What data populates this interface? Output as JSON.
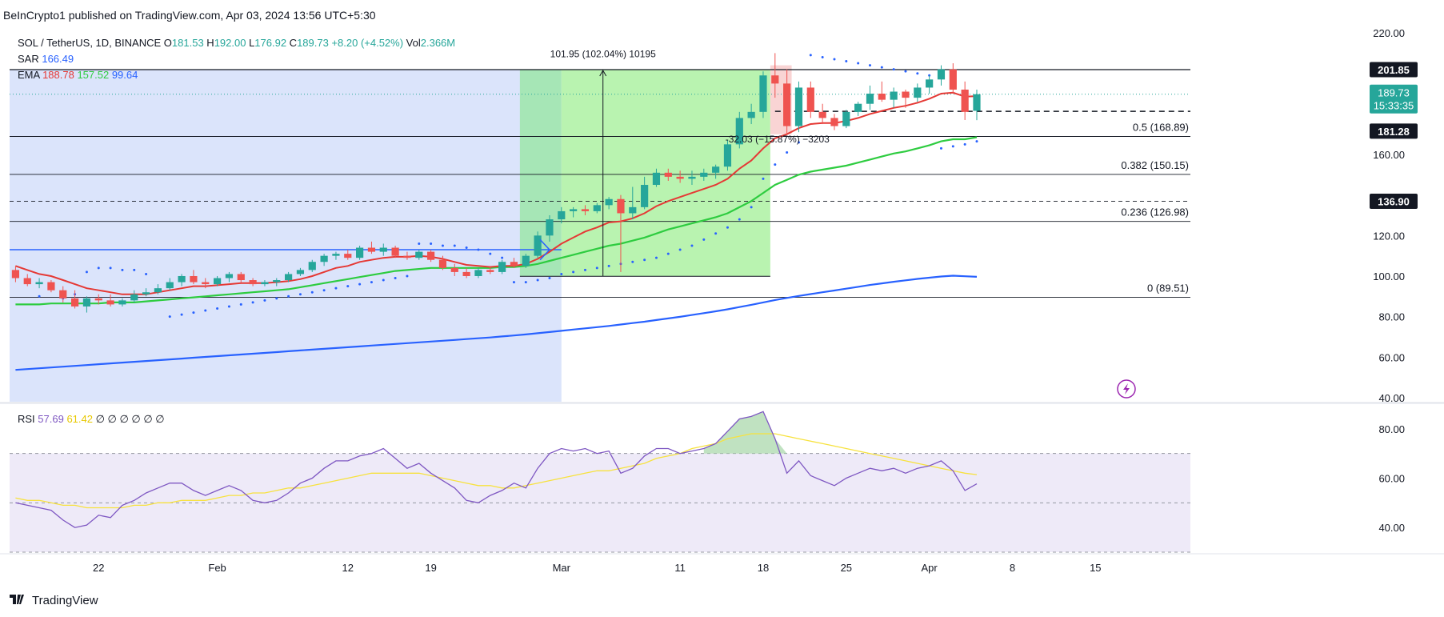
{
  "header": {
    "publisher_line": "BeInCrypto1 published on TradingView.com, Apr 03, 2024 13:56 UTC+5:30"
  },
  "symbol_bar": {
    "symbol": "SOL / TetherUS, 1D, BINANCE",
    "o_label": "O",
    "o": "181.53",
    "h_label": "H",
    "h": "192.00",
    "l_label": "L",
    "l": "176.92",
    "c_label": "C",
    "c": "189.73",
    "change": "+8.20 (+4.52%)",
    "vol_label": "Vol",
    "vol": "2.366M"
  },
  "indicators": {
    "sar_label": "SAR",
    "sar": "166.49",
    "ema_label": "EMA",
    "ema1": "188.78",
    "ema2": "157.52",
    "ema3": "99.64",
    "rsi_label": "RSI",
    "rsi": "57.69",
    "rsi_ma": "61.42",
    "rsi_extra": [
      "∅",
      "∅",
      "∅",
      "∅",
      "∅",
      "∅"
    ]
  },
  "annotations": {
    "measure_up": "101.95 (102.04%) 10195",
    "measure_down": "-32.03 (−15.87%) −3203"
  },
  "fib_levels": [
    {
      "label": "0.5 (168.89)",
      "price": 168.89
    },
    {
      "label": "0.382 (150.15)",
      "price": 150.15
    },
    {
      "label": "0.236 (126.98)",
      "price": 126.98
    },
    {
      "label": "0 (89.51)",
      "price": 89.51
    }
  ],
  "price_tags": {
    "resistance": "201.85",
    "last_price": "189.73",
    "countdown": "15:33:35",
    "support_dash": "181.28",
    "level_dash": "136.90"
  },
  "colors": {
    "up": "#26a69a",
    "down": "#ef5350",
    "ema_fast": "#e53935",
    "ema_mid": "#2ecc40",
    "ema_slow": "#2962ff",
    "rsi": "#7e57c2",
    "rsi_ma": "#f7e23e"
  },
  "footer": {
    "brand": "TradingView"
  },
  "chart_data": [
    {
      "type": "candlestick",
      "title": "SOL / TetherUS, 1D, BINANCE",
      "y_ticks": [
        220,
        200,
        180,
        160,
        140,
        120,
        100,
        80,
        60,
        40
      ],
      "y_tick_labels": [
        "220.00",
        "",
        "",
        "160.00",
        "",
        "120.00",
        "100.00",
        "80.00",
        "60.00",
        "40.00"
      ],
      "x_tick_labels": [
        {
          "label": "22",
          "day": 7
        },
        {
          "label": "Feb",
          "day": 17
        },
        {
          "label": "12",
          "day": 28
        },
        {
          "label": "19",
          "day": 35
        },
        {
          "label": "Mar",
          "day": 46
        },
        {
          "label": "11",
          "day": 56
        },
        {
          "label": "18",
          "day": 63
        },
        {
          "label": "25",
          "day": 70
        },
        {
          "label": "Apr",
          "day": 77
        },
        {
          "label": "8",
          "day": 84
        },
        {
          "label": "15",
          "day": 91
        }
      ],
      "ylim": [
        38,
        222
      ],
      "x_day_range": [
        -0.5,
        99
      ],
      "first_day": "2024-01-15",
      "candles": [
        [
          103,
          105,
          97,
          99
        ],
        [
          99,
          101,
          95,
          96
        ],
        [
          96,
          99,
          94,
          97
        ],
        [
          97,
          98,
          92,
          93
        ],
        [
          93,
          95,
          87,
          89
        ],
        [
          89,
          93,
          84,
          85
        ],
        [
          85,
          90,
          82,
          89
        ],
        [
          89,
          91,
          86,
          88
        ],
        [
          88,
          91,
          85,
          86
        ],
        [
          86,
          89,
          85,
          88
        ],
        [
          88,
          93,
          87,
          91
        ],
        [
          91,
          94,
          90,
          92
        ],
        [
          92,
          96,
          91,
          94
        ],
        [
          94,
          99,
          93,
          97
        ],
        [
          97,
          101,
          95,
          100
        ],
        [
          100,
          103,
          96,
          97
        ],
        [
          97,
          99,
          94,
          96
        ],
        [
          96,
          100,
          95,
          99
        ],
        [
          99,
          102,
          97,
          101
        ],
        [
          101,
          102,
          97,
          98
        ],
        [
          98,
          99,
          95,
          96
        ],
        [
          96,
          98,
          95,
          97
        ],
        [
          97,
          99,
          95,
          98
        ],
        [
          98,
          102,
          97,
          101
        ],
        [
          101,
          104,
          100,
          103
        ],
        [
          103,
          108,
          102,
          107
        ],
        [
          107,
          111,
          105,
          110
        ],
        [
          110,
          112,
          108,
          111
        ],
        [
          111,
          113,
          108,
          109
        ],
        [
          109,
          115,
          108,
          114
        ],
        [
          114,
          117,
          111,
          112
        ],
        [
          112,
          116,
          110,
          114
        ],
        [
          114,
          115,
          109,
          110
        ],
        [
          110,
          112,
          108,
          109
        ],
        [
          109,
          113,
          108,
          112
        ],
        [
          112,
          113,
          107,
          108
        ],
        [
          108,
          110,
          103,
          104
        ],
        [
          104,
          106,
          100,
          102
        ],
        [
          102,
          104,
          99,
          100
        ],
        [
          100,
          104,
          99,
          103
        ],
        [
          103,
          105,
          101,
          102
        ],
        [
          102,
          108,
          101,
          107
        ],
        [
          107,
          109,
          104,
          105
        ],
        [
          105,
          111,
          104,
          110
        ],
        [
          110,
          122,
          109,
          120
        ],
        [
          120,
          130,
          117,
          128
        ],
        [
          128,
          134,
          126,
          132
        ],
        [
          132,
          134,
          129,
          133
        ],
        [
          133,
          135,
          130,
          132
        ],
        [
          132,
          136,
          131,
          135
        ],
        [
          135,
          139,
          133,
          138
        ],
        [
          138,
          140,
          102,
          131
        ],
        [
          131,
          144,
          128,
          134
        ],
        [
          134,
          149,
          133,
          145
        ],
        [
          145,
          153,
          144,
          151
        ],
        [
          151,
          153,
          147,
          149
        ],
        [
          149,
          152,
          146,
          148
        ],
        [
          148,
          152,
          145,
          149
        ],
        [
          149,
          153,
          147,
          151
        ],
        [
          151,
          155,
          148,
          154
        ],
        [
          154,
          167,
          152,
          165
        ],
        [
          165,
          181,
          163,
          178
        ],
        [
          178,
          185,
          175,
          181
        ],
        [
          181,
          201,
          178,
          199
        ],
        [
          199,
          210,
          188,
          195
        ],
        [
          195,
          202,
          170,
          174
        ],
        [
          174,
          196,
          171,
          193
        ],
        [
          193,
          196,
          178,
          181
        ],
        [
          181,
          185,
          175,
          178
        ],
        [
          178,
          180,
          172,
          174
        ],
        [
          174,
          182,
          173,
          181
        ],
        [
          181,
          186,
          179,
          185
        ],
        [
          185,
          194,
          182,
          190
        ],
        [
          190,
          196,
          186,
          187
        ],
        [
          187,
          193,
          183,
          191
        ],
        [
          191,
          192,
          183,
          188
        ],
        [
          188,
          195,
          186,
          193
        ],
        [
          193,
          199,
          190,
          197
        ],
        [
          197,
          204,
          194,
          202
        ],
        [
          202,
          205,
          190,
          192
        ],
        [
          192,
          196,
          177,
          181
        ],
        [
          181.53,
          192,
          176.92,
          189.73
        ]
      ],
      "ema_fast": [
        105,
        103,
        101,
        100,
        98,
        96,
        94,
        93,
        92,
        91,
        91,
        91,
        92,
        93,
        94,
        95,
        95,
        95.5,
        96,
        96.5,
        96.5,
        96.5,
        97,
        97.5,
        98.5,
        100,
        102,
        104,
        105,
        107,
        108,
        109,
        109.5,
        109.5,
        110,
        109.5,
        108.5,
        107,
        105.5,
        105,
        104.5,
        105,
        105,
        106,
        108.5,
        112,
        116,
        119,
        122,
        124,
        126.5,
        127,
        128.5,
        131,
        134.5,
        137,
        139,
        141,
        143,
        145,
        148,
        153,
        157,
        163,
        168,
        170,
        173,
        175,
        175.5,
        175.5,
        176.5,
        178,
        180,
        181.5,
        183,
        184,
        185.5,
        187.5,
        190,
        190.5,
        188.5,
        188.78
      ],
      "ema_mid": [
        86,
        86,
        86,
        86.5,
        86.5,
        86.5,
        86.5,
        86.5,
        87,
        87,
        87,
        87.5,
        88,
        88.5,
        89,
        89.5,
        90,
        90.5,
        91,
        91.5,
        92,
        92.5,
        93,
        93.5,
        94.5,
        95.5,
        96.5,
        97.5,
        98.5,
        99.5,
        100.5,
        101.5,
        102.5,
        103,
        103.5,
        104,
        104,
        104,
        104,
        104,
        104,
        104.5,
        104.5,
        105,
        106,
        107.5,
        109,
        110.5,
        112,
        113.5,
        115,
        116,
        117.5,
        119,
        121,
        123,
        124.5,
        126,
        127.5,
        129,
        131,
        134,
        137,
        141,
        145,
        147.5,
        150,
        151.5,
        152.5,
        153.5,
        154.5,
        156,
        157.5,
        159,
        160.5,
        161.5,
        163,
        164.5,
        166.5,
        167.5,
        167.5,
        168.5
      ],
      "ema_slow": [
        53.7,
        54.1,
        54.5,
        54.9,
        55.3,
        55.7,
        56.1,
        56.5,
        56.9,
        57.3,
        57.7,
        58.1,
        58.5,
        58.9,
        59.3,
        59.7,
        60.1,
        60.5,
        60.9,
        61.3,
        61.7,
        62.1,
        62.5,
        62.9,
        63.3,
        63.7,
        64.1,
        64.5,
        64.9,
        65.3,
        65.7,
        66.1,
        66.5,
        66.9,
        67.3,
        67.7,
        68.1,
        68.5,
        68.9,
        69.3,
        69.7,
        70.2,
        70.7,
        71.2,
        71.8,
        72.4,
        73.0,
        73.6,
        74.2,
        74.8,
        75.4,
        76.1,
        76.8,
        77.5,
        78.3,
        79.1,
        79.9,
        80.8,
        81.7,
        82.6,
        83.6,
        84.7,
        85.8,
        87.0,
        88.2,
        89.2,
        90.2,
        91.1,
        92.0,
        92.9,
        93.8,
        94.7,
        95.6,
        96.4,
        97.2,
        97.9,
        98.6,
        99.2,
        99.8,
        100.2,
        99.9,
        99.64
      ],
      "sar": [
        [
          2,
          90
        ],
        [
          4,
          89
        ],
        [
          5,
          91
        ],
        [
          6,
          102
        ],
        [
          7,
          104
        ],
        [
          8,
          104
        ],
        [
          9,
          103
        ],
        [
          10,
          103
        ],
        [
          11,
          101
        ],
        [
          13,
          80
        ],
        [
          14,
          81
        ],
        [
          15,
          82
        ],
        [
          16,
          83
        ],
        [
          17,
          84
        ],
        [
          18,
          85
        ],
        [
          19,
          86
        ],
        [
          20,
          87
        ],
        [
          21,
          88
        ],
        [
          22,
          89
        ],
        [
          23,
          90
        ],
        [
          24,
          91
        ],
        [
          25,
          92
        ],
        [
          26,
          93
        ],
        [
          27,
          94
        ],
        [
          28,
          95
        ],
        [
          29,
          96
        ],
        [
          30,
          97
        ],
        [
          31,
          98
        ],
        [
          32,
          99
        ],
        [
          33,
          100
        ],
        [
          34,
          116
        ],
        [
          35,
          116
        ],
        [
          36,
          115
        ],
        [
          37,
          115
        ],
        [
          38,
          114
        ],
        [
          39,
          113
        ],
        [
          40,
          111
        ],
        [
          41,
          109
        ],
        [
          42,
          97
        ],
        [
          43,
          97
        ],
        [
          44,
          98
        ],
        [
          45,
          99
        ],
        [
          46,
          101
        ],
        [
          47,
          102
        ],
        [
          48,
          103
        ],
        [
          49,
          104
        ],
        [
          50,
          105
        ],
        [
          51,
          106
        ],
        [
          52,
          107
        ],
        [
          53,
          108
        ],
        [
          54,
          109
        ],
        [
          55,
          111
        ],
        [
          56,
          113
        ],
        [
          57,
          115
        ],
        [
          58,
          118
        ],
        [
          59,
          121
        ],
        [
          60,
          124
        ],
        [
          61,
          128
        ],
        [
          62,
          134
        ],
        [
          63,
          148
        ],
        [
          64,
          155
        ],
        [
          65,
          161
        ],
        [
          66,
          166
        ],
        [
          67,
          209
        ],
        [
          68,
          208
        ],
        [
          69,
          207
        ],
        [
          70,
          206
        ],
        [
          71,
          205
        ],
        [
          72,
          204
        ],
        [
          73,
          203
        ],
        [
          74,
          202
        ],
        [
          75,
          201
        ],
        [
          76,
          200
        ],
        [
          77,
          199
        ],
        [
          78,
          163
        ],
        [
          79,
          164
        ],
        [
          80,
          165
        ],
        [
          81,
          166.49
        ]
      ],
      "resistance_price": 201.85,
      "support_dash_price": 181.28,
      "level_dash_price": 136.9,
      "horizontal_blue_price": 113,
      "measure": {
        "from_day": 43,
        "to_day": 63,
        "bottom_price": 99.9,
        "top_price": 201.85
      }
    },
    {
      "type": "line",
      "title": "RSI",
      "ylim": [
        30,
        90
      ],
      "y_tick_labels": [
        "80.00",
        "60.00",
        "40.00"
      ],
      "y_ticks": [
        80,
        60,
        40
      ],
      "bands": [
        70,
        50,
        30
      ],
      "rsi": [
        50,
        49,
        48,
        47,
        43,
        40,
        41,
        45,
        44,
        49,
        51,
        54,
        56,
        58,
        58,
        55,
        53,
        55,
        57,
        55,
        51,
        50,
        51,
        54,
        58,
        60,
        64,
        67,
        67,
        69,
        70,
        72,
        68,
        64,
        66,
        62,
        59,
        56,
        51,
        50,
        53,
        55,
        58,
        56,
        64,
        70,
        72,
        71,
        72,
        70,
        71,
        62,
        64,
        69,
        72,
        72,
        70,
        71,
        72,
        74,
        79,
        84,
        85,
        87,
        76,
        62,
        67,
        61,
        59,
        57,
        60,
        62,
        64,
        63,
        64,
        62,
        64,
        65,
        67,
        63,
        55,
        57.69
      ],
      "rsi_ma": [
        52,
        51,
        51,
        50,
        49,
        49,
        48,
        48,
        48,
        48,
        49,
        49,
        50,
        50,
        51,
        51,
        51,
        52,
        53,
        53,
        54,
        54,
        55,
        56,
        56,
        57,
        58,
        59,
        60,
        61,
        62,
        62,
        62,
        62,
        62,
        61,
        60,
        59,
        58,
        57,
        57,
        56,
        56,
        57,
        58,
        59,
        60,
        61,
        62,
        63,
        63,
        64,
        65,
        66,
        68,
        69,
        70,
        72,
        73,
        74,
        76,
        77,
        78,
        78,
        78,
        77,
        76,
        75,
        74,
        73,
        72,
        71,
        70,
        69,
        68,
        67,
        66,
        65,
        64,
        63,
        62,
        61.42
      ]
    }
  ]
}
